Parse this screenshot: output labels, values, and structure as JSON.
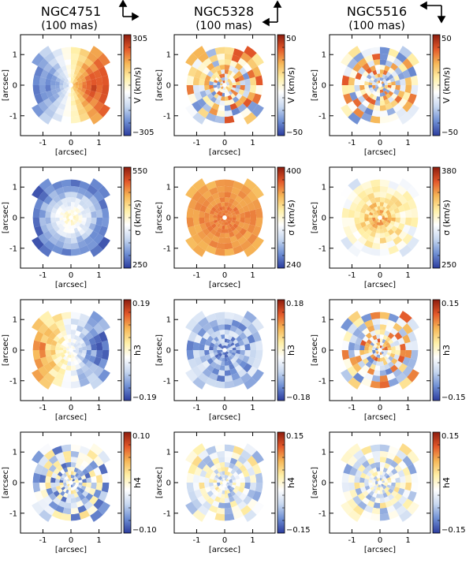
{
  "figure": {
    "columns": [
      {
        "galaxy": "NGC4751",
        "scale": "(100 mas)",
        "orientation": "n-up-e-right"
      },
      {
        "galaxy": "NGC5328",
        "scale": "(100 mas)",
        "orientation": "n-up-e-left"
      },
      {
        "galaxy": "NGC5516",
        "scale": "(100 mas)",
        "orientation": "n-down-e-left"
      }
    ]
  },
  "chart_data": {
    "type": "heatmap",
    "description_grid": "4 rows x 3 columns of polar-binned kinematic maps",
    "xlabel": "[arcsec]",
    "ylabel": "[arcsec]",
    "xticks": [
      "-1",
      "0",
      "1"
    ],
    "yticks": [
      "1",
      "0",
      "-1"
    ],
    "xlim": [
      -1.8,
      1.8
    ],
    "ylim": [
      -1.65,
      1.65
    ],
    "colormap": [
      "#2b3c9e",
      "#6f8fd4",
      "#c8d8f0",
      "#ffffff",
      "#fff0a8",
      "#f6b757",
      "#e3582a",
      "#8c1c0e"
    ],
    "rows": [
      {
        "quantity": "V",
        "cb_label": "V (km/s)",
        "panels": [
          {
            "galaxy": "NGC4751",
            "vmin": -305,
            "vmax": 305,
            "cb_top": "305",
            "cb_bottom": "−305",
            "pattern": "rotation-strong"
          },
          {
            "galaxy": "NGC5328",
            "vmin": -50,
            "vmax": 50,
            "cb_top": "50",
            "cb_bottom": "−50",
            "pattern": "noise"
          },
          {
            "galaxy": "NGC5516",
            "vmin": -50,
            "vmax": 50,
            "cb_top": "50",
            "cb_bottom": "−50",
            "pattern": "noise"
          }
        ]
      },
      {
        "quantity": "sigma",
        "cb_label": "σ (km/s)",
        "panels": [
          {
            "galaxy": "NGC4751",
            "vmin": 250,
            "vmax": 550,
            "cb_top": "550",
            "cb_bottom": "250",
            "pattern": "central-peak-low"
          },
          {
            "galaxy": "NGC5328",
            "vmin": 240,
            "vmax": 400,
            "cb_top": "400",
            "cb_bottom": "240",
            "pattern": "high-uniform"
          },
          {
            "galaxy": "NGC5516",
            "vmin": 250,
            "vmax": 380,
            "cb_top": "380",
            "cb_bottom": "250",
            "pattern": "central-peak-mid"
          }
        ]
      },
      {
        "quantity": "h3",
        "cb_label": "h3",
        "panels": [
          {
            "galaxy": "NGC4751",
            "vmin": -0.19,
            "vmax": 0.19,
            "cb_top": "0.19",
            "cb_bottom": "−0.19",
            "pattern": "anti-rotation"
          },
          {
            "galaxy": "NGC5328",
            "vmin": -0.18,
            "vmax": 0.18,
            "cb_top": "0.18",
            "cb_bottom": "−0.18",
            "pattern": "negative-bias"
          },
          {
            "galaxy": "NGC5516",
            "vmin": -0.15,
            "vmax": 0.15,
            "cb_top": "0.15",
            "cb_bottom": "−0.15",
            "pattern": "noise"
          }
        ]
      },
      {
        "quantity": "h4",
        "cb_label": "h4",
        "panels": [
          {
            "galaxy": "NGC4751",
            "vmin": -0.1,
            "vmax": 0.1,
            "cb_top": "0.10",
            "cb_bottom": "−0.10",
            "pattern": "negative-mix"
          },
          {
            "galaxy": "NGC5328",
            "vmin": -0.15,
            "vmax": 0.15,
            "cb_top": "0.15",
            "cb_bottom": "−0.15",
            "pattern": "slight-negative"
          },
          {
            "galaxy": "NGC5516",
            "vmin": -0.15,
            "vmax": 0.15,
            "cb_top": "0.15",
            "cb_bottom": "−0.15",
            "pattern": "slight-negative"
          }
        ]
      }
    ]
  }
}
